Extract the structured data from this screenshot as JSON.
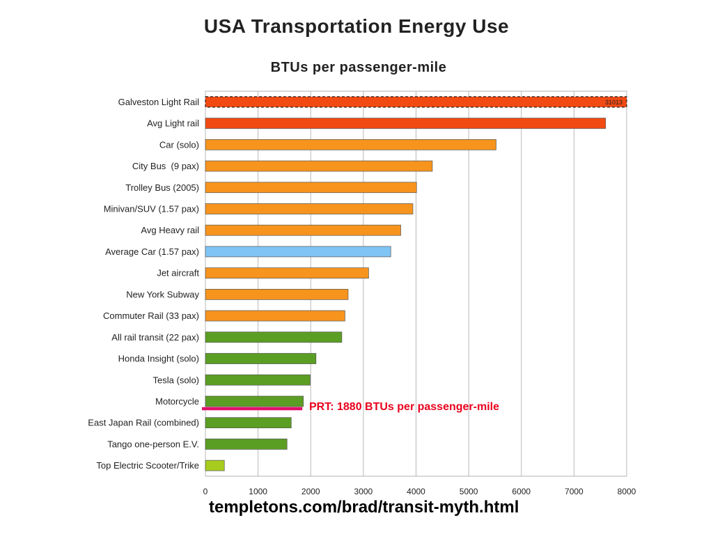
{
  "title": "USA Transportation Energy Use",
  "subtitle": "BTUs per passenger-mile",
  "source": "templetons.com/brad/transit-myth.html",
  "chart_data": {
    "type": "bar",
    "orientation": "horizontal",
    "xlim": [
      0,
      8000
    ],
    "xticks": [
      0,
      1000,
      2000,
      3000,
      4000,
      5000,
      6000,
      7000,
      8000
    ],
    "grid": true,
    "categories": [
      "Galveston Light Rail",
      "Avg Light rail",
      "Car (solo)",
      "City Bus  (9 pax)",
      "Trolley Bus (2005)",
      "Minivan/SUV (1.57 pax)",
      "Avg Heavy rail",
      "Average Car (1.57 pax)",
      "Jet aircraft",
      "New York Subway",
      "Commuter Rail (33 pax)",
      "All rail transit (22 pax)",
      "Honda Insight (solo)",
      "Tesla (solo)",
      "Motorcycle",
      "East Japan Rail (combined)",
      "Tango one-person E.V.",
      "Top Electric Scooter/Trike"
    ],
    "values": [
      31013,
      7600,
      5520,
      4310,
      4010,
      3940,
      3710,
      3520,
      3100,
      2710,
      2650,
      2590,
      2100,
      1990,
      1860,
      1630,
      1550,
      360
    ],
    "colors": [
      "#f24a13",
      "#f24a13",
      "#f7941d",
      "#f7941d",
      "#f7941d",
      "#f7941d",
      "#f7941d",
      "#7fc4f4",
      "#f7941d",
      "#f7941d",
      "#f7941d",
      "#5a9e23",
      "#5a9e23",
      "#5a9e23",
      "#5a9e23",
      "#5a9e23",
      "#5a9e23",
      "#a8cc1e"
    ],
    "data_labels": [
      "31013",
      "",
      "",
      "",
      "",
      "",
      "",
      "",
      "",
      "",
      "",
      "",
      "",
      "",
      "",
      "",
      "",
      ""
    ],
    "clipped": [
      true,
      false,
      false,
      false,
      false,
      false,
      false,
      false,
      false,
      false,
      false,
      false,
      false,
      false,
      false,
      false,
      false,
      false
    ],
    "reference_line": {
      "value": 1880,
      "label": "PRT: 1880 BTUs per passenger-mile",
      "color": "#e0106a"
    }
  }
}
